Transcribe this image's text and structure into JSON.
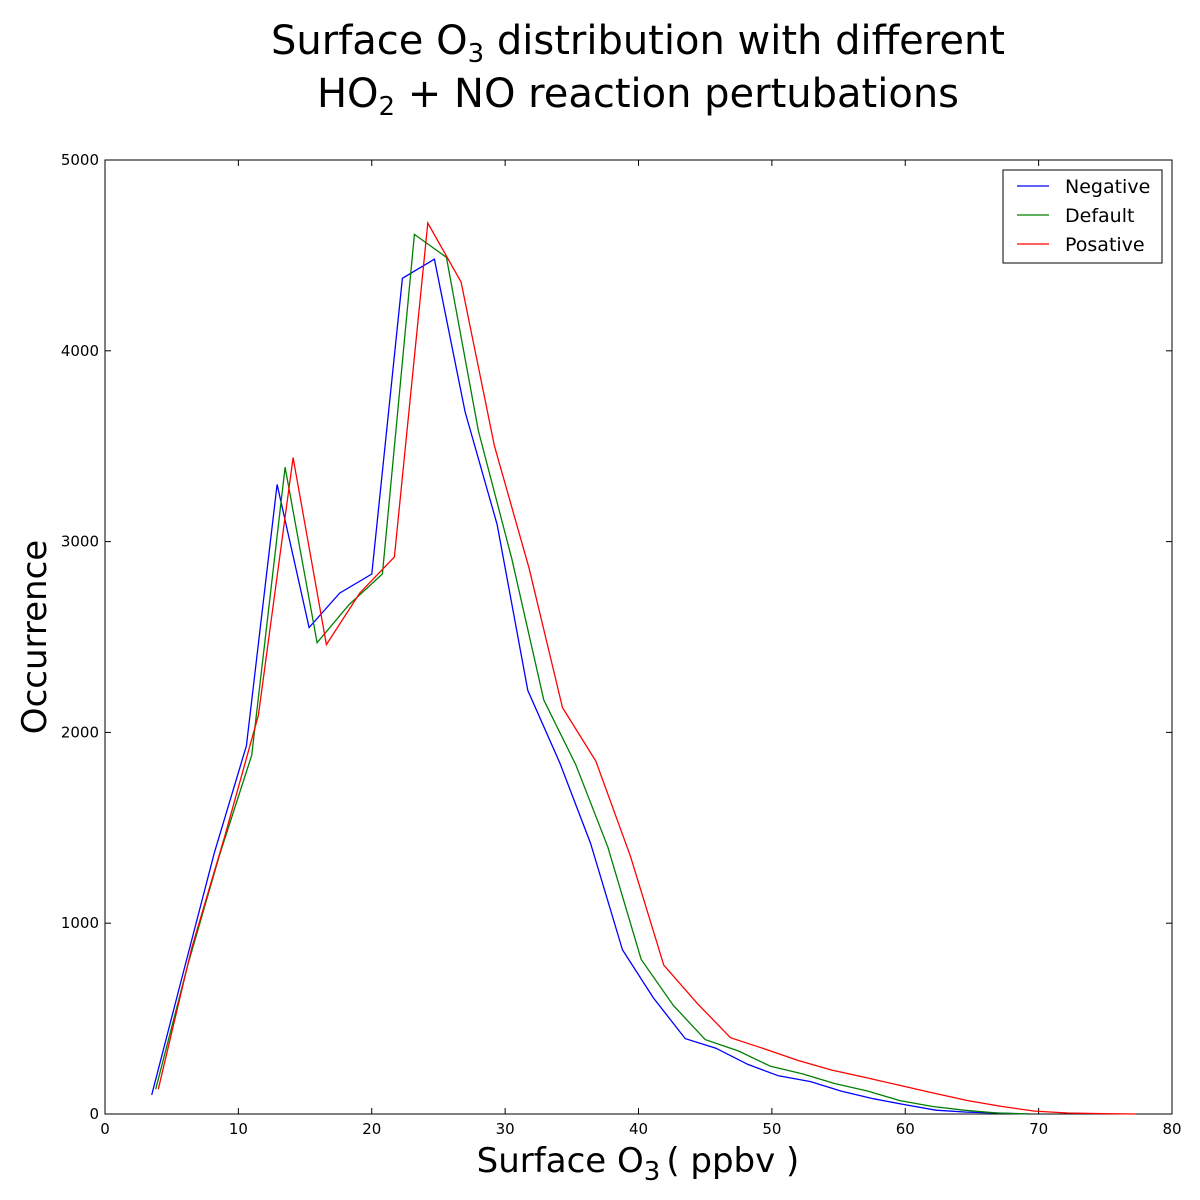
{
  "chart_data": {
    "type": "line",
    "title": {
      "line1_pre": "Surface O",
      "line1_sub": "3",
      "line1_post": " distribution with different",
      "line2_pre": "HO",
      "line2_sub": "2",
      "line2_post": " + NO reaction pertubations"
    },
    "xlabel": {
      "pre": "Surface O",
      "sub": "3",
      "post": "( ppbv )"
    },
    "ylabel": "Occurrence",
    "xlim": [
      0,
      80
    ],
    "ylim": [
      0,
      5000
    ],
    "xticks": [
      0,
      10,
      20,
      30,
      40,
      50,
      60,
      70,
      80
    ],
    "yticks": [
      0,
      1000,
      2000,
      3000,
      4000,
      5000
    ],
    "grid": false,
    "legend_position": "top-right",
    "series": [
      {
        "name": "Negative",
        "color": "#0000ff",
        "x": [
          3.5,
          5.9,
          8.2,
          10.6,
          12.9,
          15.3,
          17.6,
          20.0,
          22.3,
          24.7,
          27.0,
          29.4,
          31.7,
          34.1,
          36.4,
          38.8,
          41.1,
          43.5,
          45.8,
          48.2,
          50.5,
          52.9,
          55.2,
          57.6,
          59.9,
          62.3,
          64.6,
          67.0,
          69.3
        ],
        "y": [
          100,
          750,
          1370,
          1930,
          3300,
          2550,
          2730,
          2830,
          4380,
          4480,
          3680,
          3090,
          2220,
          1840,
          1420,
          860,
          610,
          395,
          345,
          260,
          200,
          170,
          120,
          80,
          50,
          20,
          10,
          5,
          0
        ]
      },
      {
        "name": "Default",
        "color": "#008000",
        "x": [
          3.8,
          6.2,
          8.6,
          11.0,
          13.5,
          15.9,
          18.3,
          20.8,
          23.2,
          25.6,
          28.0,
          30.5,
          32.9,
          35.3,
          37.7,
          40.2,
          42.6,
          45.0,
          47.5,
          49.9,
          52.3,
          54.7,
          57.2,
          59.6,
          62.0,
          64.4,
          66.9,
          69.3
        ],
        "y": [
          130,
          780,
          1360,
          1880,
          3390,
          2470,
          2670,
          2830,
          4610,
          4490,
          3580,
          2910,
          2170,
          1830,
          1400,
          810,
          570,
          390,
          330,
          250,
          210,
          160,
          120,
          70,
          40,
          20,
          5,
          0
        ]
      },
      {
        "name": "Posative",
        "color": "#ff0000",
        "x": [
          4.0,
          6.5,
          9.0,
          11.5,
          14.1,
          16.6,
          19.1,
          21.7,
          24.2,
          26.7,
          29.2,
          31.8,
          34.3,
          36.8,
          39.4,
          41.9,
          44.4,
          46.9,
          49.5,
          52.0,
          54.5,
          57.1,
          59.6,
          62.1,
          64.7,
          67.2,
          69.7,
          72.2,
          74.8,
          77.3
        ],
        "y": [
          130,
          870,
          1460,
          2090,
          3440,
          2460,
          2730,
          2920,
          4670,
          4360,
          3500,
          2860,
          2130,
          1850,
          1350,
          780,
          580,
          400,
          340,
          280,
          230,
          190,
          150,
          110,
          70,
          40,
          15,
          5,
          2,
          0
        ]
      }
    ]
  }
}
